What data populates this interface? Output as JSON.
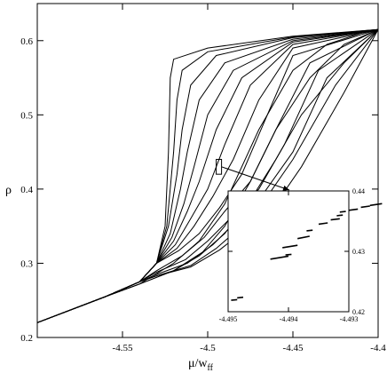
{
  "chart_data": [
    {
      "type": "line",
      "title": "",
      "xlabel": "μ/w",
      "xlabel_subscript": "ff",
      "ylabel": "ρ",
      "xlim": [
        -4.6,
        -4.4
      ],
      "ylim": [
        0.2,
        0.65
      ],
      "x_ticks": [
        -4.55,
        -4.5,
        -4.45,
        -4.4
      ],
      "x_tick_labels": [
        "-4.55",
        "-4.5",
        "-4.45",
        "-4.4"
      ],
      "y_ticks": [
        0.2,
        0.3,
        0.4,
        0.5,
        0.6
      ],
      "y_tick_labels": [
        "0.2",
        "0.3",
        "0.4",
        "0.5",
        "0.6"
      ],
      "grid": false,
      "legend": "none",
      "color": "#000000",
      "curves": [
        {
          "x": [
            -4.6,
            -4.56,
            -4.54,
            -4.53,
            -4.525,
            -4.523,
            -4.522,
            -4.52,
            -4.5,
            -4.45,
            -4.4
          ],
          "y": [
            0.22,
            0.255,
            0.275,
            0.3,
            0.35,
            0.45,
            0.55,
            0.575,
            0.59,
            0.606,
            0.615
          ]
        },
        {
          "x": [
            -4.6,
            -4.56,
            -4.54,
            -4.53,
            -4.524,
            -4.52,
            -4.518,
            -4.515,
            -4.5,
            -4.45,
            -4.4
          ],
          "y": [
            0.22,
            0.255,
            0.275,
            0.3,
            0.35,
            0.45,
            0.52,
            0.56,
            0.585,
            0.605,
            0.615
          ]
        },
        {
          "x": [
            -4.6,
            -4.56,
            -4.54,
            -4.53,
            -4.523,
            -4.518,
            -4.515,
            -4.51,
            -4.495,
            -4.45,
            -4.4
          ],
          "y": [
            0.22,
            0.255,
            0.275,
            0.3,
            0.35,
            0.42,
            0.48,
            0.54,
            0.58,
            0.604,
            0.615
          ]
        },
        {
          "x": [
            -4.6,
            -4.56,
            -4.54,
            -4.53,
            -4.522,
            -4.516,
            -4.512,
            -4.505,
            -4.49,
            -4.45,
            -4.4
          ],
          "y": [
            0.22,
            0.255,
            0.275,
            0.3,
            0.34,
            0.4,
            0.45,
            0.52,
            0.57,
            0.602,
            0.615
          ]
        },
        {
          "x": [
            -4.6,
            -4.56,
            -4.54,
            -4.53,
            -4.521,
            -4.514,
            -4.508,
            -4.5,
            -4.485,
            -4.45,
            -4.4
          ],
          "y": [
            0.22,
            0.255,
            0.275,
            0.3,
            0.335,
            0.38,
            0.43,
            0.5,
            0.56,
            0.6,
            0.615
          ]
        },
        {
          "x": [
            -4.6,
            -4.56,
            -4.54,
            -4.53,
            -4.52,
            -4.512,
            -4.505,
            -4.495,
            -4.48,
            -4.45,
            -4.4
          ],
          "y": [
            0.22,
            0.255,
            0.275,
            0.3,
            0.33,
            0.37,
            0.41,
            0.48,
            0.55,
            0.598,
            0.615
          ]
        },
        {
          "x": [
            -4.6,
            -4.56,
            -4.54,
            -4.53,
            -4.519,
            -4.51,
            -4.5,
            -4.49,
            -4.475,
            -4.45,
            -4.4
          ],
          "y": [
            0.22,
            0.255,
            0.275,
            0.3,
            0.325,
            0.36,
            0.4,
            0.46,
            0.54,
            0.595,
            0.615
          ]
        },
        {
          "x": [
            -4.6,
            -4.56,
            -4.54,
            -4.53,
            -4.518,
            -4.508,
            -4.497,
            -4.485,
            -4.47,
            -4.45,
            -4.4
          ],
          "y": [
            0.22,
            0.255,
            0.275,
            0.3,
            0.32,
            0.35,
            0.39,
            0.44,
            0.52,
            0.59,
            0.615
          ]
        },
        {
          "x": [
            -4.6,
            -4.56,
            -4.54,
            -4.53,
            -4.517,
            -4.505,
            -4.493,
            -4.48,
            -4.465,
            -4.45,
            -4.4
          ],
          "y": [
            0.22,
            0.255,
            0.275,
            0.3,
            0.317,
            0.34,
            0.375,
            0.42,
            0.5,
            0.58,
            0.615
          ]
        },
        {
          "x": [
            -4.6,
            -4.56,
            -4.54,
            -4.53,
            -4.515,
            -4.502,
            -4.49,
            -4.475,
            -4.46,
            -4.44,
            -4.4
          ],
          "y": [
            0.22,
            0.255,
            0.275,
            0.29,
            0.31,
            0.335,
            0.37,
            0.41,
            0.48,
            0.57,
            0.615
          ]
        },
        {
          "x": [
            -4.6,
            -4.56,
            -4.54,
            -4.53,
            -4.513,
            -4.5,
            -4.487,
            -4.47,
            -4.455,
            -4.435,
            -4.4
          ],
          "y": [
            0.22,
            0.255,
            0.275,
            0.288,
            0.305,
            0.33,
            0.36,
            0.4,
            0.46,
            0.56,
            0.615
          ]
        },
        {
          "x": [
            -4.6,
            -4.56,
            -4.54,
            -4.53,
            -4.512,
            -4.497,
            -4.484,
            -4.467,
            -4.45,
            -4.43,
            -4.4
          ],
          "y": [
            0.22,
            0.255,
            0.275,
            0.285,
            0.3,
            0.325,
            0.355,
            0.395,
            0.45,
            0.55,
            0.615
          ]
        },
        {
          "x": [
            -4.6,
            -4.56,
            -4.54,
            -4.53,
            -4.51,
            -4.495,
            -4.48,
            -4.465,
            -4.45,
            -4.425,
            -4.4
          ],
          "y": [
            0.22,
            0.255,
            0.275,
            0.283,
            0.297,
            0.32,
            0.35,
            0.39,
            0.44,
            0.54,
            0.615
          ]
        },
        {
          "x": [
            -4.6,
            -4.56,
            -4.54,
            -4.53,
            -4.51,
            -4.493,
            -4.478,
            -4.46,
            -4.445,
            -4.42,
            -4.4
          ],
          "y": [
            0.22,
            0.255,
            0.275,
            0.283,
            0.295,
            0.318,
            0.345,
            0.38,
            0.43,
            0.53,
            0.615
          ]
        },
        {
          "x": [
            -4.6,
            -4.56,
            -4.54,
            -4.52,
            -4.505,
            -4.49,
            -4.475,
            -4.46,
            -4.445,
            -4.42,
            -4.4
          ],
          "y": [
            0.22,
            0.255,
            0.272,
            0.29,
            0.31,
            0.34,
            0.385,
            0.44,
            0.5,
            0.57,
            0.615
          ]
        },
        {
          "x": [
            -4.6,
            -4.56,
            -4.54,
            -4.52,
            -4.503,
            -4.49,
            -4.475,
            -4.46,
            -4.44,
            -4.42,
            -4.4
          ],
          "y": [
            0.22,
            0.255,
            0.272,
            0.29,
            0.315,
            0.35,
            0.41,
            0.48,
            0.55,
            0.595,
            0.615
          ]
        },
        {
          "x": [
            -4.6,
            -4.56,
            -4.54,
            -4.52,
            -4.505,
            -4.49,
            -4.47,
            -4.45,
            -4.43,
            -4.41,
            -4.4
          ],
          "y": [
            0.22,
            0.255,
            0.272,
            0.3,
            0.33,
            0.38,
            0.48,
            0.56,
            0.595,
            0.61,
            0.615
          ]
        }
      ],
      "zoom_box": {
        "x": [
          -4.495,
          -4.493
        ],
        "y": [
          0.42,
          0.44
        ]
      }
    },
    {
      "type": "scatter",
      "title": "",
      "xlabel": "",
      "ylabel": "",
      "xlim": [
        -4.495,
        -4.493
      ],
      "ylim": [
        0.42,
        0.44
      ],
      "x_ticks": [
        -4.495,
        -4.494,
        -4.493
      ],
      "x_tick_labels": [
        "-4.495",
        "-4.494",
        "-4.493"
      ],
      "y_ticks": [
        0.42,
        0.43,
        0.44
      ],
      "y_tick_labels": [
        "0.42",
        "0.43",
        "0.44"
      ],
      "y_axis_side": "right",
      "grid": false,
      "legend": "none",
      "segments": [
        {
          "x": [
            -4.49495,
            -4.49485
          ],
          "y": [
            0.4219,
            0.422
          ]
        },
        {
          "x": [
            -4.49485,
            -4.49475
          ],
          "y": [
            0.4223,
            0.4224
          ]
        },
        {
          "x": [
            -4.4943,
            -4.494
          ],
          "y": [
            0.4287,
            0.4292
          ]
        },
        {
          "x": [
            -4.49405,
            -4.49395
          ],
          "y": [
            0.4294,
            0.4295
          ]
        },
        {
          "x": [
            -4.4941,
            -4.49385
          ],
          "y": [
            0.4306,
            0.431
          ]
        },
        {
          "x": [
            -4.49385,
            -4.49365
          ],
          "y": [
            0.4321,
            0.4325
          ]
        },
        {
          "x": [
            -4.4937,
            -4.4936
          ],
          "y": [
            0.4334,
            0.4335
          ]
        },
        {
          "x": [
            -4.4935,
            -4.49335
          ],
          "y": [
            0.4345,
            0.4347
          ]
        },
        {
          "x": [
            -4.4933,
            -4.49315
          ],
          "y": [
            0.4352,
            0.4354
          ]
        },
        {
          "x": [
            -4.4932,
            -4.4931
          ],
          "y": [
            0.4359,
            0.436
          ]
        },
        {
          "x": [
            -4.49315,
            -4.49305
          ],
          "y": [
            0.4365,
            0.4366
          ]
        },
        {
          "x": [
            -4.493,
            -4.49285
          ],
          "y": [
            0.4368,
            0.437
          ]
        },
        {
          "x": [
            -4.4928,
            -4.49265
          ],
          "y": [
            0.4373,
            0.4375
          ]
        },
        {
          "x": [
            -4.49265,
            -4.49245
          ],
          "y": [
            0.4376,
            0.4379
          ]
        }
      ]
    }
  ]
}
